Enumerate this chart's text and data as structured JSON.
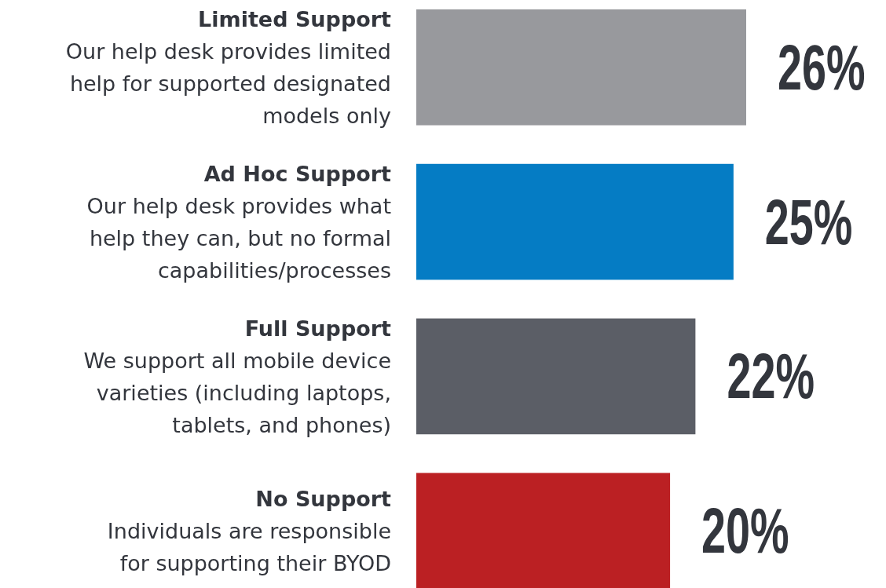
{
  "chart_data": {
    "type": "bar",
    "orientation": "horizontal",
    "value_labels": [
      "26%",
      "25%",
      "22%",
      "20%"
    ],
    "categories": [
      "Limited Support\nOur help desk provides limited\nhelp for supported designated\nmodels only",
      "Ad Hoc Support\nOur help desk provides what\nhelp they can, but no formal\ncapabilities/processes",
      "Full Support\nWe support all mobile device\nvarieties (including laptops,\ntablets, and phones)",
      "No Support\nIndividuals are responsible\nfor supporting their BYOD"
    ],
    "values": [
      26,
      25,
      22,
      20
    ],
    "colors": [
      "#98999d",
      "#057cc4",
      "#5b5e66",
      "#bb2023"
    ]
  }
}
